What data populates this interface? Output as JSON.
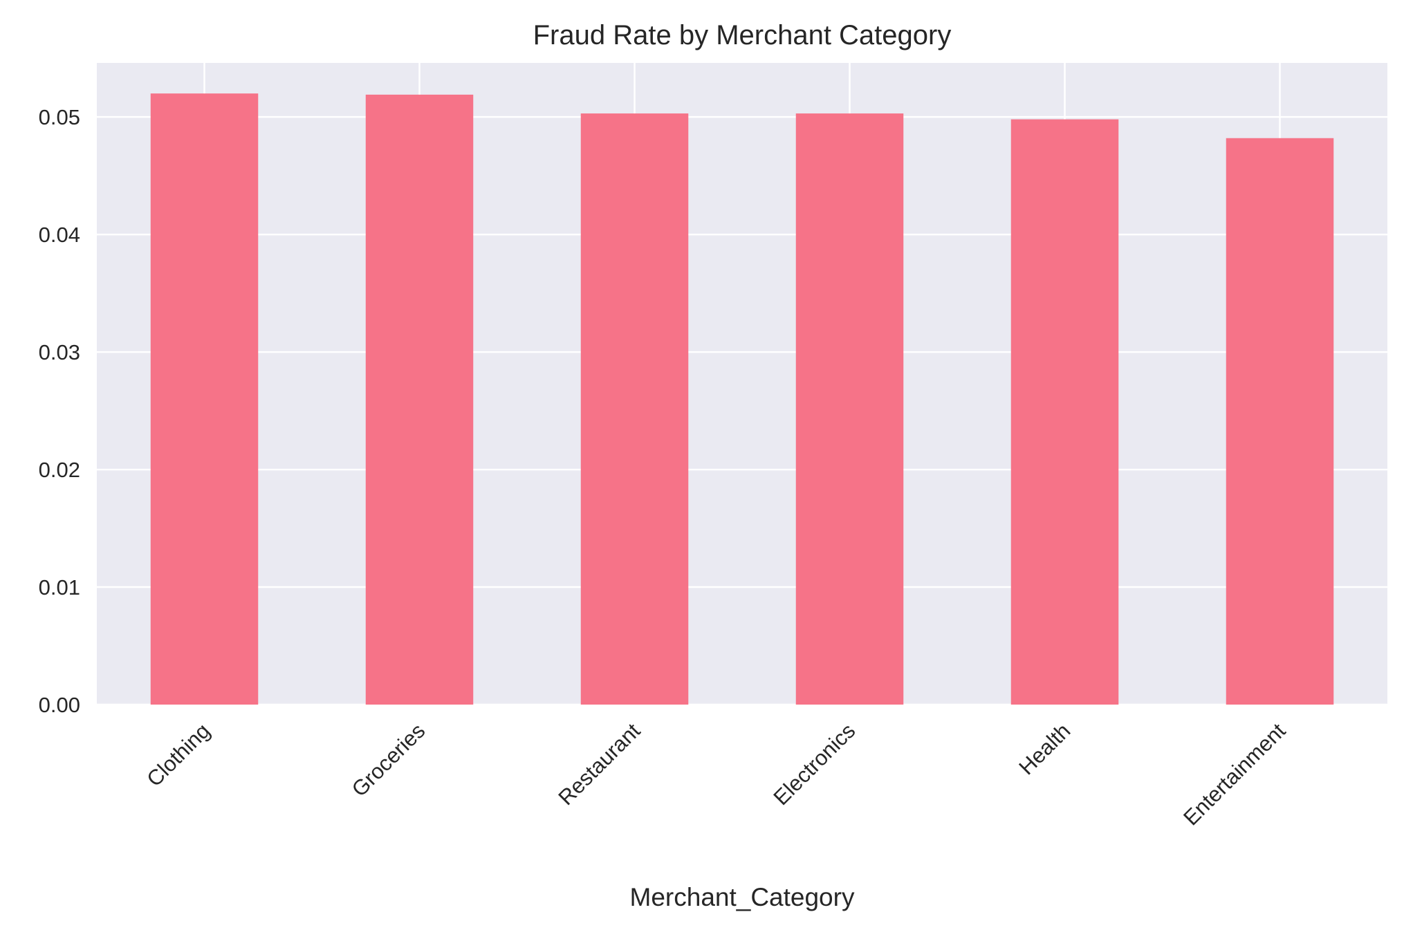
{
  "chart_data": {
    "type": "bar",
    "title": "Fraud Rate by Merchant Category",
    "xlabel": "Merchant_Category",
    "ylabel": "",
    "categories": [
      "Clothing",
      "Groceries",
      "Restaurant",
      "Electronics",
      "Health",
      "Entertainment"
    ],
    "values": [
      0.052,
      0.0519,
      0.0503,
      0.0503,
      0.0498,
      0.0482
    ],
    "ylim": [
      0,
      0.0546
    ],
    "yticks": [
      "0.00",
      "0.01",
      "0.02",
      "0.03",
      "0.04",
      "0.05"
    ],
    "ytick_values": [
      0,
      0.01,
      0.02,
      0.03,
      0.04,
      0.05
    ],
    "grid": true,
    "legend": "none",
    "colors": {
      "bar": "#f67388",
      "plot_background": "#eaeaf2",
      "grid": "#ffffff",
      "text": "#262626"
    }
  }
}
